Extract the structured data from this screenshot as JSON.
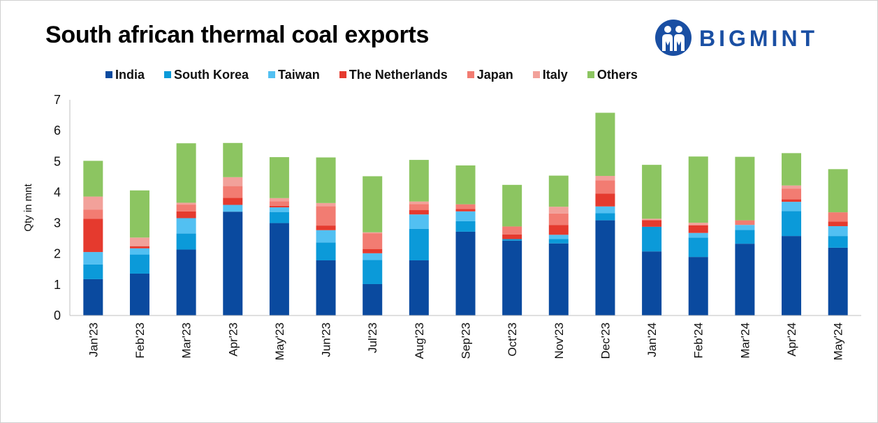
{
  "title": "South african thermal coal exports",
  "logo": {
    "text": "BIGMINT",
    "icon": "bigmint-people-logo-icon",
    "color": "#1a4fa3"
  },
  "chart_data": {
    "type": "bar",
    "stacked": true,
    "ylabel": "Qty in mnt",
    "xlabel": "",
    "ylim": [
      0,
      7
    ],
    "yticks": [
      0,
      1,
      2,
      3,
      4,
      5,
      6,
      7
    ],
    "grid": false,
    "legend_position": "top",
    "categories": [
      "Jan'23",
      "Feb'23",
      "Mar'23",
      "Apr'23",
      "May'23",
      "Jun'23",
      "Jul'23",
      "Aug'23",
      "Sep'23",
      "Oct'23",
      "Nov'23",
      "Dec'23",
      "Jan'24",
      "Feb'24",
      "Mar'24",
      "Apr'24",
      "May'24"
    ],
    "series": [
      {
        "name": "India",
        "color": "#0a4a9f",
        "values": [
          1.18,
          1.36,
          2.14,
          3.37,
          3.0,
          1.79,
          1.02,
          1.79,
          2.72,
          2.43,
          2.34,
          3.09,
          2.08,
          1.9,
          2.33,
          2.58,
          2.2
        ]
      },
      {
        "name": "South Korea",
        "color": "#0b9ad9",
        "values": [
          0.48,
          0.62,
          0.52,
          0.0,
          0.36,
          0.58,
          0.78,
          1.02,
          0.34,
          0.05,
          0.14,
          0.23,
          0.8,
          0.63,
          0.45,
          0.81,
          0.38
        ]
      },
      {
        "name": "Taiwan",
        "color": "#52c0f2",
        "values": [
          0.4,
          0.2,
          0.5,
          0.22,
          0.15,
          0.4,
          0.22,
          0.47,
          0.32,
          0.0,
          0.14,
          0.22,
          0.0,
          0.15,
          0.16,
          0.3,
          0.32
        ]
      },
      {
        "name": "The Netherlands",
        "color": "#e53a2e",
        "values": [
          1.08,
          0.07,
          0.22,
          0.23,
          0.05,
          0.15,
          0.14,
          0.14,
          0.08,
          0.15,
          0.32,
          0.42,
          0.21,
          0.25,
          0.0,
          0.08,
          0.15
        ]
      },
      {
        "name": "Japan",
        "color": "#f27c72",
        "values": [
          0.3,
          0.0,
          0.22,
          0.38,
          0.15,
          0.63,
          0.51,
          0.2,
          0.15,
          0.26,
          0.37,
          0.43,
          0.02,
          0.0,
          0.15,
          0.35,
          0.3
        ]
      },
      {
        "name": "Italy",
        "color": "#f2a19a",
        "values": [
          0.42,
          0.28,
          0.06,
          0.29,
          0.1,
          0.1,
          0.03,
          0.08,
          0.0,
          0.0,
          0.22,
          0.14,
          0.03,
          0.08,
          0.0,
          0.1,
          0.0
        ]
      },
      {
        "name": "Others",
        "color": "#8cc561",
        "values": [
          1.16,
          1.53,
          1.93,
          1.11,
          1.33,
          1.48,
          1.82,
          1.35,
          1.26,
          1.35,
          1.01,
          2.05,
          1.75,
          2.15,
          2.06,
          1.05,
          1.4
        ]
      }
    ]
  }
}
